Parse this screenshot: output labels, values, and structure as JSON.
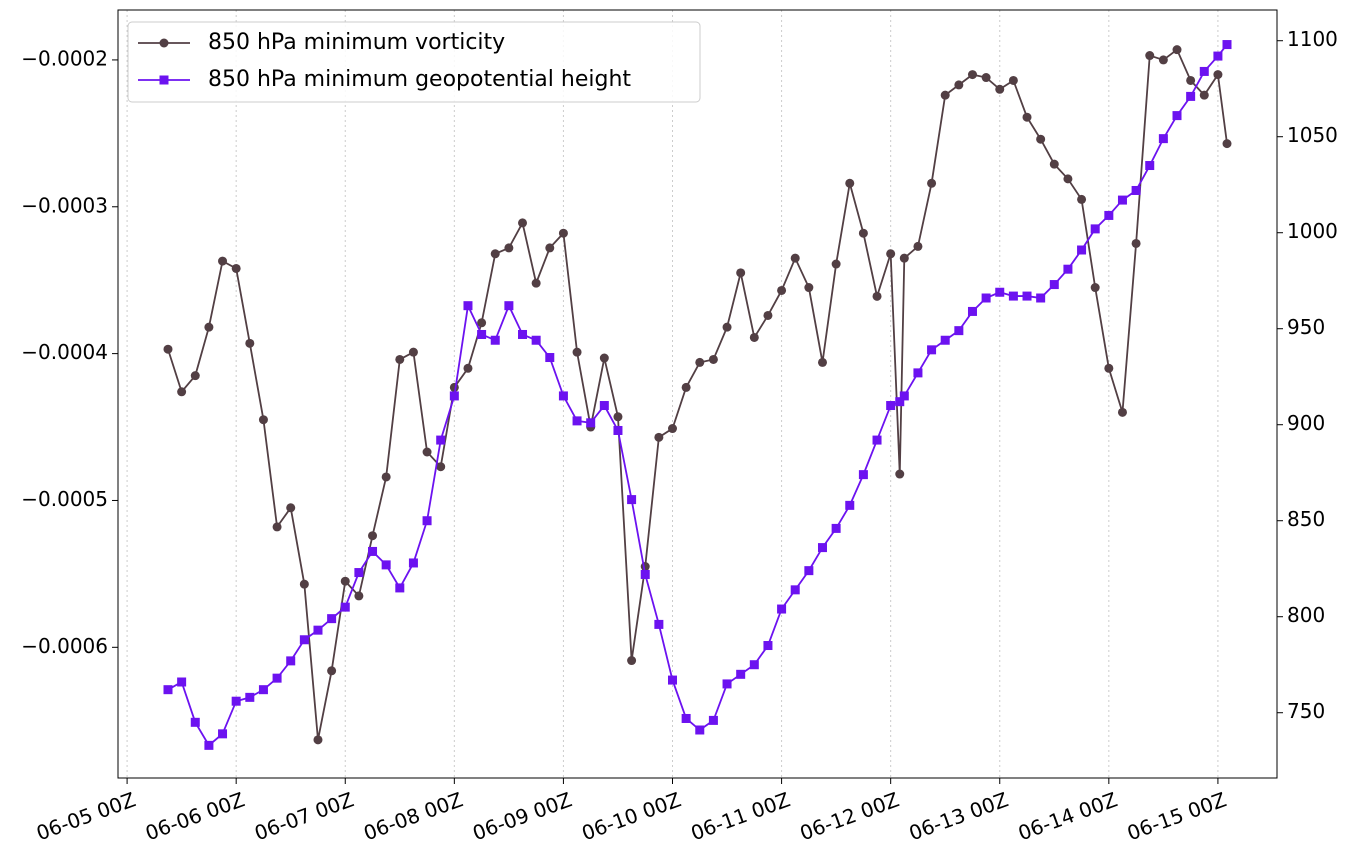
{
  "chart_data": {
    "type": "line",
    "x": [
      "06-05 09Z",
      "06-05 12Z",
      "06-05 15Z",
      "06-05 18Z",
      "06-05 21Z",
      "06-06 00Z",
      "06-06 03Z",
      "06-06 06Z",
      "06-06 09Z",
      "06-06 12Z",
      "06-06 15Z",
      "06-06 18Z",
      "06-06 21Z",
      "06-07 00Z",
      "06-07 03Z",
      "06-07 06Z",
      "06-07 09Z",
      "06-07 12Z",
      "06-07 15Z",
      "06-07 18Z",
      "06-07 21Z",
      "06-08 00Z",
      "06-08 03Z",
      "06-08 06Z",
      "06-08 09Z",
      "06-08 12Z",
      "06-08 15Z",
      "06-08 18Z",
      "06-08 21Z",
      "06-09 00Z",
      "06-09 03Z",
      "06-09 06Z",
      "06-09 09Z",
      "06-09 12Z",
      "06-09 15Z",
      "06-09 18Z",
      "06-09 21Z",
      "06-10 00Z",
      "06-10 03Z",
      "06-10 06Z",
      "06-10 09Z",
      "06-10 12Z",
      "06-10 15Z",
      "06-10 18Z",
      "06-10 21Z",
      "06-11 00Z",
      "06-11 03Z",
      "06-11 06Z",
      "06-11 09Z",
      "06-11 12Z",
      "06-11 15Z",
      "06-11 18Z",
      "06-11 21Z",
      "06-12 00Z",
      "06-12 02Z",
      "06-12 03Z",
      "06-12 06Z",
      "06-12 09Z",
      "06-12 12Z",
      "06-12 15Z",
      "06-12 18Z",
      "06-12 21Z",
      "06-13 00Z",
      "06-13 03Z",
      "06-13 06Z",
      "06-13 09Z",
      "06-13 12Z",
      "06-13 15Z",
      "06-13 18Z",
      "06-13 21Z",
      "06-14 00Z",
      "06-14 03Z",
      "06-14 06Z",
      "06-14 09Z",
      "06-14 12Z",
      "06-14 15Z",
      "06-14 18Z",
      "06-14 21Z",
      "06-15 00Z",
      "06-15 02Z"
    ],
    "series": [
      {
        "name": "850 hPa minimum vorticity",
        "color": "#523f44",
        "marker": "circle",
        "axis": "y",
        "values": [
          -0.000397,
          -0.000426,
          -0.000415,
          -0.000382,
          -0.000337,
          -0.000342,
          -0.000393,
          -0.000445,
          -0.000518,
          -0.000505,
          -0.000557,
          -0.000663,
          -0.000616,
          -0.000555,
          -0.000565,
          -0.000524,
          -0.000484,
          -0.000404,
          -0.000399,
          -0.000467,
          -0.000477,
          -0.000423,
          -0.00041,
          -0.000379,
          -0.000332,
          -0.000328,
          -0.000311,
          -0.000352,
          -0.000328,
          -0.000318,
          -0.000399,
          -0.00045,
          -0.000403,
          -0.000443,
          -0.000609,
          -0.000545,
          -0.000457,
          -0.000451,
          -0.000423,
          -0.000406,
          -0.000404,
          -0.000382,
          -0.000345,
          -0.000389,
          -0.000374,
          -0.000357,
          -0.000335,
          -0.000355,
          -0.000406,
          -0.000339,
          -0.000284,
          -0.000318,
          -0.000361,
          -0.000332,
          -0.000482,
          -0.000335,
          -0.000327,
          -0.000284,
          -0.000224,
          -0.000217,
          -0.00021,
          -0.000212,
          -0.00022,
          -0.000214,
          -0.000239,
          -0.000254,
          -0.000271,
          -0.000281,
          -0.000295,
          -0.000355,
          -0.00041,
          -0.00044,
          -0.000325,
          -0.000197,
          -0.0002,
          -0.000193,
          -0.000214,
          -0.000224,
          -0.00021,
          -0.000257
        ]
      },
      {
        "name": "850 hPa minimum geopotential height",
        "color": "#6c12f0",
        "marker": "square",
        "axis": "y2",
        "values": [
          762,
          766,
          745,
          733,
          739,
          756,
          758,
          762,
          768,
          777,
          788,
          793,
          799,
          805,
          823,
          834,
          827,
          815,
          828,
          850,
          892,
          915,
          962,
          947,
          944,
          962,
          947,
          944,
          935,
          915,
          902,
          901,
          910,
          897,
          861,
          822,
          796,
          767,
          747,
          741,
          746,
          765,
          770,
          775,
          785,
          804,
          814,
          824,
          836,
          846,
          858,
          874,
          892,
          910,
          912,
          915,
          927,
          939,
          944,
          949,
          959,
          966,
          969,
          967,
          967,
          966,
          973,
          981,
          991,
          1002,
          1009,
          1017,
          1022,
          1035,
          1049,
          1061,
          1071,
          1084,
          1092,
          1098
        ]
      }
    ],
    "xlim": [
      "06-04 22Z",
      "06-15 13Z"
    ],
    "xticks": [
      "06-05 00Z",
      "06-06 00Z",
      "06-07 00Z",
      "06-08 00Z",
      "06-09 00Z",
      "06-10 00Z",
      "06-11 00Z",
      "06-12 00Z",
      "06-13 00Z",
      "06-14 00Z",
      "06-15 00Z"
    ],
    "ylim": [
      -0.000689,
      -0.000166
    ],
    "yticks": [
      {
        "value": -0.0006,
        "label": "−0.0006"
      },
      {
        "value": -0.0005,
        "label": "−0.0005"
      },
      {
        "value": -0.0004,
        "label": "−0.0004"
      },
      {
        "value": -0.0003,
        "label": "−0.0003"
      },
      {
        "value": -0.0002,
        "label": "−0.0002"
      }
    ],
    "y2lim": [
      716,
      1116
    ],
    "y2ticks": [
      750,
      800,
      850,
      900,
      950,
      1000,
      1050,
      1100
    ],
    "grid": "x",
    "legend": "upper left"
  }
}
